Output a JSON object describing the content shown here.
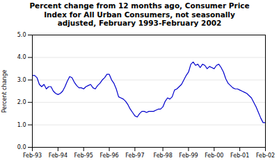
{
  "chart_data": {
    "type": "line",
    "title": "Percent change from 12 months ago, Consumer Price\nIndex for All Urban Consumers, not seasonally\nadjusted, February 1993-February 2002",
    "ylabel": "Percent change",
    "color": "#0000CC",
    "grid": true,
    "ylim": [
      0.0,
      5.0
    ],
    "yticks": [
      {
        "value": 0.0,
        "label": "0.0"
      },
      {
        "value": 1.0,
        "label": "1.0"
      },
      {
        "value": 2.0,
        "label": "2.0"
      },
      {
        "value": 3.0,
        "label": "3.0"
      },
      {
        "value": 4.0,
        "label": "4.0"
      },
      {
        "value": 5.0,
        "label": "5.0"
      }
    ],
    "categories": [
      "Feb-93",
      null,
      null,
      null,
      null,
      null,
      null,
      null,
      null,
      null,
      null,
      "Feb-94",
      null,
      null,
      null,
      null,
      null,
      null,
      null,
      null,
      null,
      null,
      "Feb-95",
      null,
      null,
      null,
      null,
      null,
      null,
      null,
      null,
      null,
      null,
      "Feb-96",
      null,
      null,
      null,
      null,
      null,
      null,
      null,
      null,
      null,
      null,
      "Feb-97",
      null,
      null,
      null,
      null,
      null,
      null,
      null,
      null,
      null,
      null,
      null,
      "Feb-98",
      null,
      null,
      null,
      null,
      null,
      null,
      null,
      null,
      null,
      null,
      "Feb-99",
      null,
      null,
      null,
      null,
      null,
      null,
      null,
      null,
      null,
      null,
      "Feb-00",
      null,
      null,
      null,
      null,
      null,
      null,
      null,
      null,
      null,
      null,
      "Feb-01",
      null,
      null,
      null,
      null,
      null,
      null,
      null,
      null,
      null,
      null,
      "Feb-02"
    ],
    "values": [
      3.2,
      3.2,
      3.1,
      2.8,
      2.7,
      2.8,
      2.6,
      2.7,
      2.7,
      2.5,
      2.4,
      2.35,
      2.4,
      2.5,
      2.7,
      2.95,
      3.15,
      3.1,
      2.9,
      2.75,
      2.65,
      2.65,
      2.6,
      2.7,
      2.75,
      2.8,
      2.65,
      2.6,
      2.75,
      2.85,
      3.0,
      3.1,
      3.25,
      3.25,
      3.0,
      2.85,
      2.6,
      2.25,
      2.2,
      2.15,
      2.05,
      1.9,
      1.7,
      1.55,
      1.4,
      1.35,
      1.5,
      1.6,
      1.6,
      1.55,
      1.6,
      1.6,
      1.6,
      1.65,
      1.7,
      1.7,
      1.8,
      2.05,
      2.2,
      2.15,
      2.25,
      2.55,
      2.6,
      2.7,
      2.8,
      3.0,
      3.2,
      3.35,
      3.7,
      3.8,
      3.65,
      3.7,
      3.55,
      3.7,
      3.65,
      3.5,
      3.6,
      3.55,
      3.5,
      3.65,
      3.7,
      3.55,
      3.35,
      3.05,
      2.85,
      2.75,
      2.65,
      2.6,
      2.6,
      2.55,
      2.5,
      2.45,
      2.4,
      2.3,
      2.2,
      2.0,
      1.8,
      1.55,
      1.3,
      1.1,
      1.1
    ]
  }
}
